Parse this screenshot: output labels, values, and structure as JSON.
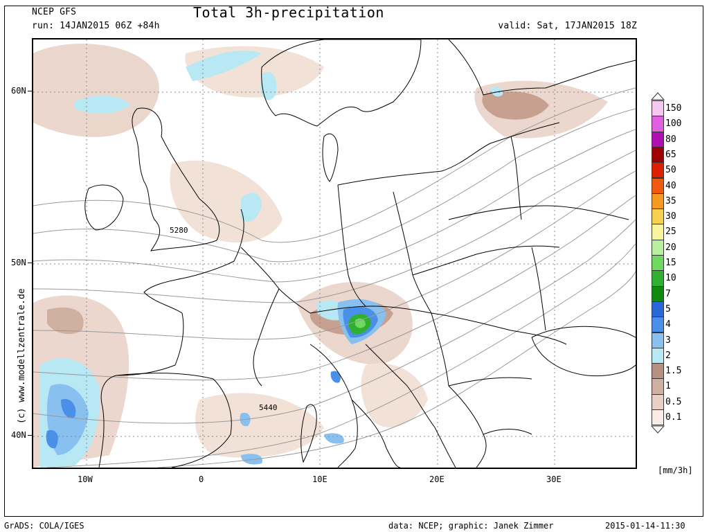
{
  "header": {
    "model": "NCEP GFS",
    "run": "run: 14JAN2015 06Z +84h",
    "title": "Total 3h-precipitation",
    "valid": "valid: Sat, 17JAN2015 18Z"
  },
  "map": {
    "lat_labels": [
      "60N",
      "50N",
      "40N"
    ],
    "lon_labels": [
      "10W",
      "0",
      "10E",
      "20E",
      "30E"
    ],
    "contour_labels": [
      "5280",
      "5440"
    ]
  },
  "legend": {
    "unit": "[mm/3h]",
    "levels": [
      {
        "label": "150",
        "color": "#f5c8f0"
      },
      {
        "label": "100",
        "color": "#e060e0"
      },
      {
        "label": "80",
        "color": "#b010b0"
      },
      {
        "label": "65",
        "color": "#a00000"
      },
      {
        "label": "50",
        "color": "#dc2000"
      },
      {
        "label": "40",
        "color": "#f05a10"
      },
      {
        "label": "35",
        "color": "#f59a20"
      },
      {
        "label": "30",
        "color": "#f8d050"
      },
      {
        "label": "25",
        "color": "#f8f4a0"
      },
      {
        "label": "20",
        "color": "#b8f0a0"
      },
      {
        "label": "15",
        "color": "#70d860"
      },
      {
        "label": "10",
        "color": "#30b030"
      },
      {
        "label": "7",
        "color": "#108a10"
      },
      {
        "label": "5",
        "color": "#2868d8"
      },
      {
        "label": "4",
        "color": "#4a90e8"
      },
      {
        "label": "3",
        "color": "#88c0f0"
      },
      {
        "label": "2",
        "color": "#b8e8f4"
      },
      {
        "label": "1.5",
        "color": "#b89080"
      },
      {
        "label": "1",
        "color": "#d0b0a0"
      },
      {
        "label": "0.5",
        "color": "#e8d0c4"
      },
      {
        "label": "0.1",
        "color": "#f8ece4"
      }
    ]
  },
  "watermark": "(c)  www.modellzentrale.de",
  "footer": {
    "left": "GrADS: COLA/IGES",
    "data": "data: NCEP; graphic: Janek Zimmer",
    "date": "2015-01-14-11:30"
  }
}
